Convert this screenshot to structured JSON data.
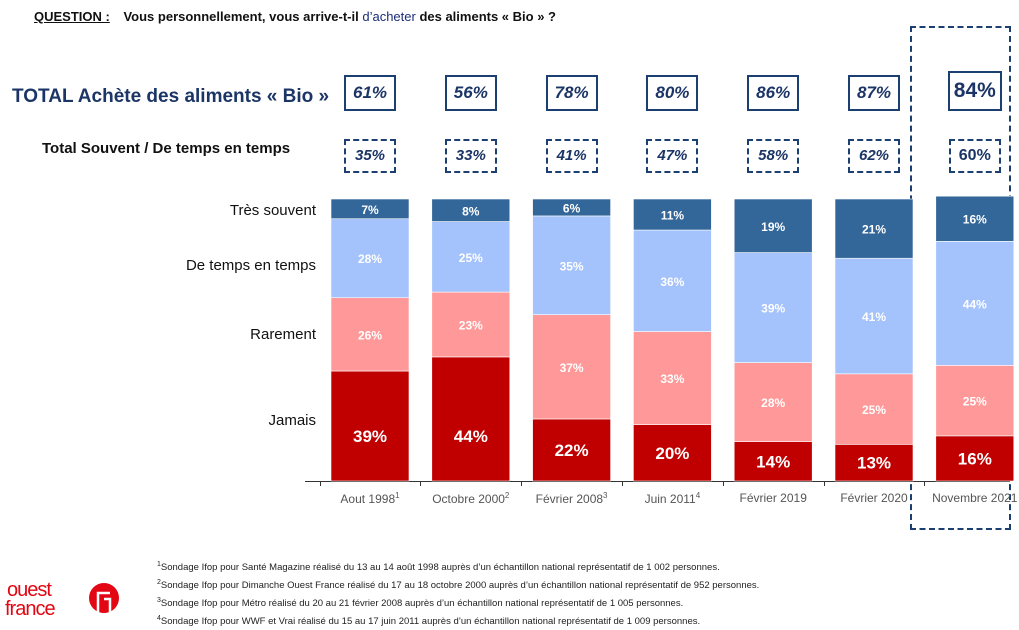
{
  "question": {
    "label": "QUESTION :",
    "text_before": "Vous personnellement, vous arrive-t-il ",
    "text_accent": "d’acheter",
    "text_after": " des aliments « Bio » ?"
  },
  "rows": {
    "total_label": "TOTAL Achète des aliments « Bio »",
    "subtotal_label": "Total Souvent / De temps en temps"
  },
  "totals": [
    "61%",
    "56%",
    "78%",
    "80%",
    "86%",
    "87%",
    "84%"
  ],
  "subtotals": [
    "35%",
    "33%",
    "41%",
    "47%",
    "58%",
    "62%",
    "60%"
  ],
  "categories": [
    {
      "label": "Aout 1998",
      "note": "1"
    },
    {
      "label": "Octobre 2000",
      "note": "2"
    },
    {
      "label": "Février 2008",
      "note": "3"
    },
    {
      "label": "Juin 2011",
      "note": "4"
    },
    {
      "label": "Février 2019",
      "note": ""
    },
    {
      "label": "Février 2020",
      "note": ""
    },
    {
      "label": "Novembre 2021",
      "note": ""
    }
  ],
  "footnotes": [
    {
      "num": "1",
      "text": "Sondage Ifop pour Santé Magazine réalisé du 13 au 14 août 1998 auprès d’un échantillon national représentatif de 1 002 personnes."
    },
    {
      "num": "2",
      "text": "Sondage Ifop pour Dimanche Ouest France réalisé du 17 au 18 octobre 2000 auprès d’un échantillon national représentatif de 952 personnes."
    },
    {
      "num": "3",
      "text": "Sondage Ifop pour Métro réalisé du 20 au 21 février 2008 auprès d’un échantillon national représentatif de 1 005 personnes."
    },
    {
      "num": "4",
      "text": "Sondage Ifop pour WWF et Vrai réalisé du 15 au 17 juin 2011 auprès d’un échantillon national représentatif de 1 009 personnes."
    }
  ],
  "logo": {
    "line1": "ouest",
    "line2": "france"
  },
  "colors": {
    "tres_souvent": "#336699",
    "de_temps": "#a4c2fc",
    "rarement": "#ff9999",
    "jamais": "#c00000",
    "navy": "#1b3566",
    "logo_red": "#e30613"
  },
  "chart_data": {
    "type": "bar",
    "stacked": true,
    "title": "Vous personnellement, vous arrive-t-il d’acheter des aliments « Bio » ?",
    "categories": [
      "Aout 1998",
      "Octobre 2000",
      "Février 2008",
      "Juin 2011",
      "Février 2019",
      "Février 2020",
      "Novembre 2021"
    ],
    "series": [
      {
        "name": "Jamais",
        "values": [
          39,
          44,
          22,
          20,
          14,
          13,
          16
        ]
      },
      {
        "name": "Rarement",
        "values": [
          26,
          23,
          37,
          33,
          28,
          25,
          25
        ]
      },
      {
        "name": "De temps en temps",
        "values": [
          28,
          25,
          35,
          36,
          39,
          41,
          44
        ]
      },
      {
        "name": "Très souvent",
        "values": [
          7,
          8,
          6,
          11,
          19,
          21,
          16
        ]
      }
    ],
    "ylim": [
      0,
      100
    ],
    "unit": "%",
    "grid": false
  }
}
